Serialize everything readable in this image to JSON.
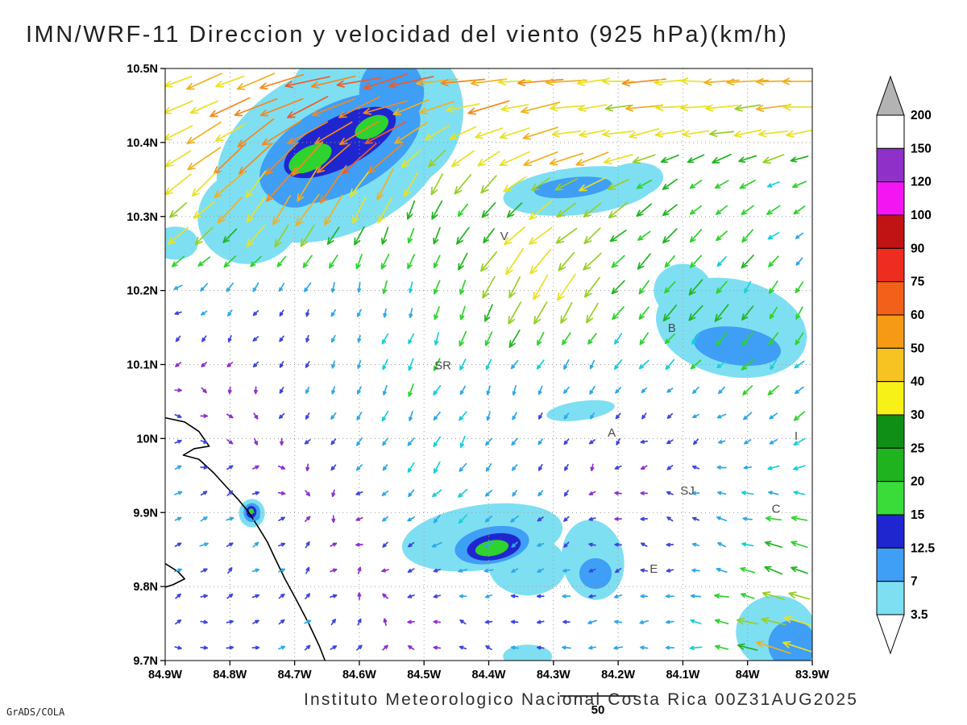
{
  "title": "IMN/WRF-11 Direccion y velocidad del viento (925 hPa)(km/h)",
  "footer": {
    "institution": "Instituto Meteorologico Nacional Costa Rica 00Z31AUG2025",
    "credit": "GrADS/COLA",
    "vector_reference_label": "50"
  },
  "chart_data": {
    "type": "vector-field-map",
    "variable": "Direccion y velocidad del viento",
    "level": "925 hPa",
    "units": "km/h",
    "x_axis": {
      "ticks": [
        "84.9W",
        "84.8W",
        "84.7W",
        "84.6W",
        "84.5W",
        "84.4W",
        "84.3W",
        "84.2W",
        "84.1W",
        "84W",
        "83.9W"
      ]
    },
    "y_axis": {
      "ticks": [
        "9.7N",
        "9.8N",
        "9.9N",
        "10N",
        "10.1N",
        "10.2N",
        "10.3N",
        "10.4N",
        "10.5N"
      ]
    },
    "grid": "dotted",
    "colorbar": {
      "levels_top_to_bottom": [
        "200",
        "150",
        "120",
        "100",
        "90",
        "75",
        "60",
        "50",
        "40",
        "30",
        "25",
        "20",
        "15",
        "12.5",
        "7",
        "3.5"
      ],
      "segment_colors_top_to_bottom": [
        "#ffffff",
        "#8f30c9",
        "#f316f3",
        "#c01414",
        "#ef2c20",
        "#f2601a",
        "#f69a16",
        "#f5c422",
        "#f7f118",
        "#0f8f16",
        "#1fb41f",
        "#39dc39",
        "#2026cf",
        "#3f9ef5",
        "#7edff2"
      ],
      "above_top_color": "#b3b3b3",
      "below_bottom_color": "#ffffff"
    },
    "stations": [
      {
        "label": "V",
        "fx": 0.524,
        "fy": 0.29
      },
      {
        "label": "B",
        "fx": 0.783,
        "fy": 0.445
      },
      {
        "label": "SR",
        "fx": 0.429,
        "fy": 0.508
      },
      {
        "label": "A",
        "fx": 0.69,
        "fy": 0.622
      },
      {
        "label": "I",
        "fx": 0.975,
        "fy": 0.627
      },
      {
        "label": "SJ",
        "fx": 0.807,
        "fy": 0.72
      },
      {
        "label": "C",
        "fx": 0.944,
        "fy": 0.75
      },
      {
        "label": "E",
        "fx": 0.755,
        "fy": 0.852
      }
    ],
    "vector_grid": {
      "cols": 25,
      "rows": 23
    },
    "wind_field": {
      "fy_rows_top_to_bottom": [
        0,
        0.2,
        0.4,
        0.6,
        0.8,
        1.0
      ],
      "fx_cols_west_to_east": [
        0,
        0.2,
        0.4,
        0.6,
        0.8,
        1.0
      ],
      "u_kmh": [
        [
          -35,
          -42,
          -45,
          -48,
          -45,
          -40
        ],
        [
          -25,
          -20,
          -12,
          -18,
          -14,
          -16
        ],
        [
          -4,
          -3,
          -5,
          -8,
          -10,
          -8
        ],
        [
          2,
          -2,
          -4,
          -5,
          -6,
          -8
        ],
        [
          6,
          5,
          -5,
          -6,
          -5,
          -18
        ],
        [
          7,
          6,
          -4,
          -6,
          -10,
          -30
        ]
      ],
      "v_kmh": [
        [
          -15,
          -8,
          -5,
          -3,
          -3,
          -2
        ],
        [
          -18,
          -30,
          -22,
          -10,
          -8,
          -6
        ],
        [
          -3,
          -5,
          -14,
          -16,
          -12,
          -10
        ],
        [
          -2,
          -3,
          -8,
          -6,
          -6,
          -8
        ],
        [
          4,
          3,
          -4,
          -3,
          2,
          6
        ],
        [
          4,
          3,
          -2,
          1,
          4,
          10
        ]
      ]
    },
    "wind_boosts": [
      {
        "fx": 0.27,
        "fy": 0.12,
        "r": 0.16,
        "f": 0.7
      },
      {
        "fx": 0.56,
        "fy": 0.37,
        "r": 0.09,
        "f": 0.8
      },
      {
        "fx": 0.63,
        "fy": 0.21,
        "r": 0.09,
        "f": 0.5
      },
      {
        "fx": 0.875,
        "fy": 0.45,
        "r": 0.1,
        "f": 0.45
      },
      {
        "fx": 0.5,
        "fy": 0.81,
        "r": 0.1,
        "f": 0.6
      },
      {
        "fx": 0.95,
        "fy": 0.96,
        "r": 0.09,
        "f": 0.7
      },
      {
        "fx": 0.134,
        "fy": 0.75,
        "r": 0.04,
        "f": 0.8
      }
    ],
    "arrow_speed_thresholds": [
      3.5,
      7,
      12.5,
      15,
      20,
      25,
      30,
      40,
      50,
      60,
      75
    ],
    "arrow_colors": [
      "#8e2fd0",
      "#3d45e0",
      "#2fa8e8",
      "#18cfd8",
      "#2ed32e",
      "#22b422",
      "#97cf26",
      "#e8e226",
      "#f2b01e",
      "#f5881c",
      "#f05a28",
      "#e63030"
    ],
    "shade_palette": {
      "cyan": "#7edff2",
      "blue": "#3f9ef5",
      "darkblue": "#2026cf",
      "green": "#2ed32e"
    },
    "shaded_regions": [
      {
        "name": "northwest-maximum",
        "layers": [
          {
            "color": "cyan",
            "ellipses": [
              [
                0.26,
                0.14,
                0.19,
                0.14,
                -25
              ],
              [
                0.37,
                0.08,
                0.09,
                0.12,
                10
              ],
              [
                0.13,
                0.25,
                0.08,
                0.08,
                -10
              ],
              [
                0.3,
                0.02,
                0.1,
                0.05,
                0
              ]
            ]
          },
          {
            "color": "blue",
            "ellipses": [
              [
                0.27,
                0.135,
                0.135,
                0.075,
                -27
              ],
              [
                0.35,
                0.04,
                0.05,
                0.06,
                0
              ],
              [
                0.2,
                0.19,
                0.045,
                0.045,
                0
              ]
            ]
          },
          {
            "color": "darkblue",
            "ellipses": [
              [
                0.27,
                0.125,
                0.095,
                0.042,
                -27
              ]
            ]
          },
          {
            "color": "green",
            "ellipses": [
              [
                0.224,
                0.152,
                0.036,
                0.02,
                -27
              ],
              [
                0.319,
                0.099,
                0.028,
                0.017,
                -27
              ]
            ]
          }
        ]
      },
      {
        "name": "west-edge-patch",
        "layers": [
          {
            "color": "cyan",
            "ellipses": [
              [
                0.016,
                0.295,
                0.035,
                0.028,
                0
              ]
            ]
          }
        ]
      },
      {
        "name": "north-center-band",
        "layers": [
          {
            "color": "cyan",
            "ellipses": [
              [
                0.64,
                0.207,
                0.118,
                0.04,
                -6
              ],
              [
                0.72,
                0.19,
                0.05,
                0.03,
                -10
              ]
            ]
          },
          {
            "color": "blue",
            "ellipses": [
              [
                0.63,
                0.201,
                0.06,
                0.017,
                -6
              ]
            ]
          }
        ]
      },
      {
        "name": "east-patch",
        "layers": [
          {
            "color": "cyan",
            "ellipses": [
              [
                0.875,
                0.438,
                0.118,
                0.082,
                12
              ],
              [
                0.8,
                0.375,
                0.045,
                0.045,
                0
              ]
            ]
          },
          {
            "color": "blue",
            "ellipses": [
              [
                0.884,
                0.469,
                0.068,
                0.032,
                8
              ]
            ]
          }
        ]
      },
      {
        "name": "center-sliver",
        "layers": [
          {
            "color": "cyan",
            "ellipses": [
              [
                0.642,
                0.578,
                0.053,
                0.016,
                -8
              ]
            ]
          }
        ]
      },
      {
        "name": "south-center-maximum",
        "layers": [
          {
            "color": "cyan",
            "ellipses": [
              [
                0.49,
                0.792,
                0.125,
                0.055,
                -8
              ],
              [
                0.56,
                0.84,
                0.06,
                0.05,
                0
              ]
            ]
          },
          {
            "color": "blue",
            "ellipses": [
              [
                0.505,
                0.805,
                0.058,
                0.031,
                -10
              ]
            ]
          },
          {
            "color": "darkblue",
            "ellipses": [
              [
                0.508,
                0.808,
                0.042,
                0.022,
                -10
              ]
            ]
          },
          {
            "color": "green",
            "ellipses": [
              [
                0.505,
                0.81,
                0.026,
                0.013,
                -10
              ]
            ]
          }
        ]
      },
      {
        "name": "south-center-east-patch",
        "layers": [
          {
            "color": "cyan",
            "ellipses": [
              [
                0.661,
                0.83,
                0.048,
                0.068,
                -10
              ]
            ]
          },
          {
            "color": "blue",
            "ellipses": [
              [
                0.665,
                0.853,
                0.025,
                0.026,
                0
              ]
            ]
          }
        ]
      },
      {
        "name": "coastal-spot",
        "layers": [
          {
            "color": "cyan",
            "ellipses": [
              [
                0.134,
                0.751,
                0.02,
                0.024,
                0
              ]
            ]
          },
          {
            "color": "blue",
            "ellipses": [
              [
                0.134,
                0.75,
                0.013,
                0.016,
                0
              ]
            ]
          },
          {
            "color": "darkblue",
            "ellipses": [
              [
                0.133,
                0.749,
                0.008,
                0.01,
                0
              ]
            ]
          },
          {
            "color": "green",
            "ellipses": [
              [
                0.133,
                0.748,
                0.004,
                0.005,
                0
              ]
            ]
          }
        ]
      },
      {
        "name": "southeast-corner",
        "layers": [
          {
            "color": "cyan",
            "ellipses": [
              [
                0.944,
                0.952,
                0.062,
                0.062,
                0
              ]
            ]
          },
          {
            "color": "blue",
            "ellipses": [
              [
                0.969,
                0.973,
                0.037,
                0.041,
                0
              ]
            ]
          }
        ]
      },
      {
        "name": "south-edge-patch",
        "layers": [
          {
            "color": "cyan",
            "ellipses": [
              [
                0.56,
                0.993,
                0.038,
                0.02,
                0
              ]
            ]
          }
        ]
      }
    ],
    "coastline": [
      [
        [
          0,
          0.59
        ],
        [
          0.03,
          0.597
        ],
        [
          0.052,
          0.613
        ],
        [
          0.068,
          0.638
        ],
        [
          0.045,
          0.642
        ],
        [
          0.028,
          0.653
        ],
        [
          0.052,
          0.66
        ],
        [
          0.075,
          0.683
        ],
        [
          0.094,
          0.706
        ],
        [
          0.112,
          0.727
        ],
        [
          0.128,
          0.748
        ],
        [
          0.143,
          0.773
        ],
        [
          0.158,
          0.8
        ],
        [
          0.17,
          0.828
        ],
        [
          0.185,
          0.862
        ],
        [
          0.202,
          0.896
        ],
        [
          0.222,
          0.938
        ],
        [
          0.238,
          0.975
        ],
        [
          0.247,
          1.0
        ]
      ],
      [
        [
          0,
          0.836
        ],
        [
          0.02,
          0.85
        ],
        [
          0.03,
          0.862
        ],
        [
          0.012,
          0.872
        ],
        [
          0,
          0.876
        ]
      ]
    ]
  }
}
